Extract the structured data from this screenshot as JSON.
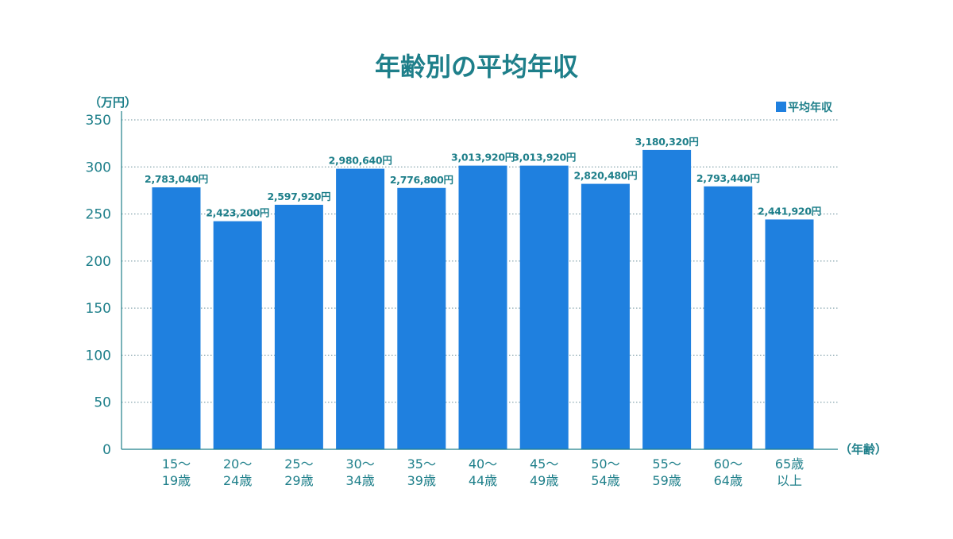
{
  "colors": {
    "bar": "#1f80df",
    "text": "#1e7f8a",
    "axis": "#1e7f8a",
    "grid": "#6a8f9a"
  },
  "chart_data": {
    "type": "bar",
    "title": "年齢別の平均年収",
    "ylabel": "（万円）",
    "xlabel": "（年齢）",
    "ylim": [
      0,
      350
    ],
    "yticks": [
      0,
      50,
      100,
      150,
      200,
      250,
      300,
      350
    ],
    "grid": true,
    "legend_position": "top-right",
    "categories": [
      [
        "15〜",
        "19歳"
      ],
      [
        "20〜",
        "24歳"
      ],
      [
        "25〜",
        "29歳"
      ],
      [
        "30〜",
        "34歳"
      ],
      [
        "35〜",
        "39歳"
      ],
      [
        "40〜",
        "44歳"
      ],
      [
        "45〜",
        "49歳"
      ],
      [
        "50〜",
        "54歳"
      ],
      [
        "55〜",
        "59歳"
      ],
      [
        "60〜",
        "64歳"
      ],
      [
        "65歳",
        "以上"
      ]
    ],
    "series": [
      {
        "name": "平均年収",
        "values": [
          278.304,
          242.32,
          259.792,
          298.064,
          277.68,
          301.392,
          301.392,
          282.048,
          318.032,
          279.344,
          244.192
        ],
        "labels": [
          "2,783,040円",
          "2,423,200円",
          "2,597,920円",
          "2,980,640円",
          "2,776,800円",
          "3,013,920円",
          "3,013,920円",
          "2,820,480円",
          "3,180,320円",
          "2,793,440円",
          "2,441,920円"
        ]
      }
    ]
  }
}
